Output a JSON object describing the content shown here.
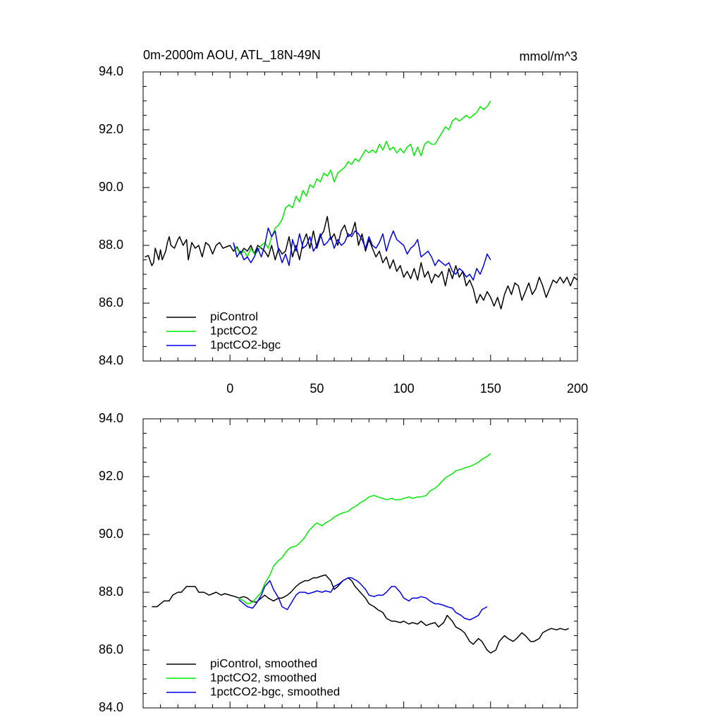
{
  "title_left": "0m-2000m AOU, ATL_18N-49N",
  "title_right": "mmol/m^3",
  "colors": {
    "piControl": "#000000",
    "1pctCO2": "#00ee00",
    "1pctCO2-bgc": "#0000ee"
  },
  "chart_data": [
    {
      "type": "line",
      "panel": "top",
      "title": "0m-2000m AOU, ATL_18N-49N",
      "units": "mmol/m^3",
      "xlim": [
        -50,
        200
      ],
      "ylim": [
        84,
        94
      ],
      "x_ticks": [
        0,
        50,
        100,
        150,
        200
      ],
      "x_tick_labels": [
        "0",
        "50",
        "100",
        "150",
        "200"
      ],
      "y_ticks": [
        84,
        86,
        88,
        90,
        92,
        94
      ],
      "y_tick_labels": [
        "84.0",
        "86.0",
        "88.0",
        "90.0",
        "92.0",
        "94.0"
      ],
      "legend_position": "bottom-left",
      "series": [
        {
          "name": "piControl",
          "color": "#000000",
          "x": [
            -49,
            -47,
            -45,
            -44,
            -43,
            -41,
            -40,
            -39,
            -37,
            -36,
            -35,
            -34,
            -32,
            -30,
            -29,
            -27,
            -25,
            -24,
            -22,
            -20,
            -18,
            -16,
            -14,
            -13,
            -12,
            -10,
            -8,
            -6,
            -4,
            -2,
            0,
            2,
            4,
            6,
            8,
            10,
            12,
            14,
            16,
            18,
            20,
            22,
            24,
            26,
            28,
            30,
            32,
            34,
            36,
            38,
            40,
            42,
            44,
            46,
            48,
            50,
            52,
            54,
            56,
            58,
            60,
            62,
            64,
            66,
            68,
            70,
            72,
            74,
            76,
            78,
            80,
            82,
            84,
            86,
            88,
            90,
            92,
            94,
            96,
            98,
            100,
            102,
            104,
            106,
            108,
            110,
            112,
            114,
            116,
            118,
            120,
            122,
            124,
            126,
            128,
            130,
            132,
            134,
            136,
            138,
            140,
            142,
            144,
            146,
            148,
            150,
            152,
            154,
            156,
            158,
            160,
            162,
            164,
            166,
            168,
            170,
            172,
            174,
            176,
            178,
            180,
            182,
            184,
            186,
            188,
            190,
            192,
            194,
            196,
            198,
            200
          ],
          "y": [
            87.6,
            87.65,
            87.3,
            87.4,
            87.9,
            87.5,
            87.85,
            87.5,
            87.8,
            88.1,
            88.3,
            88.0,
            87.9,
            88.2,
            88.3,
            88.0,
            88.2,
            87.5,
            88.1,
            87.9,
            88.0,
            87.6,
            88.1,
            88.05,
            88.0,
            87.7,
            88.0,
            88.1,
            87.9,
            87.95,
            88.0,
            87.8,
            87.95,
            87.7,
            87.9,
            87.8,
            88.0,
            87.7,
            88.0,
            87.9,
            87.8,
            87.6,
            88.0,
            87.5,
            87.9,
            87.7,
            87.8,
            88.3,
            87.6,
            88.0,
            87.5,
            88.1,
            88.4,
            87.9,
            88.5,
            87.9,
            88.3,
            88.5,
            89.0,
            88.2,
            88.4,
            88.0,
            88.5,
            88.7,
            88.3,
            88.4,
            88.8,
            88.0,
            88.4,
            87.8,
            88.2,
            87.9,
            87.6,
            87.8,
            87.4,
            87.6,
            87.2,
            87.5,
            87.1,
            87.3,
            86.9,
            87.1,
            86.85,
            87.2,
            86.8,
            87.4,
            86.9,
            87.1,
            86.7,
            87.0,
            86.9,
            87.1,
            86.6,
            87.2,
            86.85,
            87.3,
            86.9,
            87.1,
            86.6,
            86.8,
            86.5,
            86.0,
            86.3,
            86.1,
            86.4,
            86.2,
            85.9,
            86.2,
            85.8,
            86.3,
            86.6,
            86.3,
            86.7,
            86.6,
            86.1,
            86.4,
            86.7,
            86.3,
            86.5,
            86.9,
            86.6,
            86.2,
            86.5,
            86.8,
            86.7,
            86.9,
            86.7,
            86.9,
            86.6,
            86.9,
            86.8
          ]
        },
        {
          "name": "1pctCO2",
          "color": "#00ee00",
          "x": [
            2,
            4,
            6,
            8,
            10,
            12,
            14,
            16,
            18,
            20,
            22,
            24,
            26,
            28,
            30,
            32,
            34,
            36,
            38,
            40,
            42,
            44,
            46,
            48,
            50,
            52,
            54,
            56,
            58,
            60,
            62,
            64,
            66,
            68,
            70,
            72,
            74,
            76,
            78,
            80,
            82,
            84,
            86,
            88,
            90,
            92,
            94,
            96,
            98,
            100,
            102,
            104,
            106,
            108,
            110,
            112,
            114,
            116,
            118,
            120,
            122,
            124,
            126,
            128,
            130,
            132,
            134,
            136,
            138,
            140,
            142,
            144,
            146,
            148,
            150
          ],
          "y": [
            88.0,
            87.9,
            87.7,
            87.8,
            87.6,
            87.9,
            87.7,
            87.8,
            88.0,
            88.1,
            87.9,
            88.3,
            88.6,
            88.7,
            88.9,
            89.3,
            89.4,
            89.3,
            89.7,
            89.5,
            89.9,
            89.7,
            90.1,
            90.0,
            90.3,
            90.2,
            90.5,
            90.4,
            90.6,
            90.2,
            90.5,
            90.6,
            90.7,
            90.9,
            90.8,
            91.0,
            90.9,
            91.1,
            91.3,
            91.2,
            91.3,
            91.2,
            91.5,
            91.3,
            91.6,
            91.3,
            91.4,
            91.2,
            91.35,
            91.2,
            91.4,
            91.5,
            91.1,
            91.4,
            91.1,
            91.5,
            91.6,
            91.5,
            91.5,
            91.7,
            91.9,
            92.1,
            92.0,
            92.3,
            92.4,
            92.3,
            92.4,
            92.5,
            92.4,
            92.5,
            92.6,
            92.8,
            92.7,
            92.8,
            93.0
          ]
        },
        {
          "name": "1pctCO2-bgc",
          "color": "#0000ee",
          "x": [
            2,
            4,
            6,
            8,
            10,
            12,
            14,
            16,
            18,
            20,
            22,
            24,
            26,
            28,
            30,
            32,
            34,
            36,
            38,
            40,
            42,
            44,
            46,
            48,
            50,
            52,
            54,
            56,
            58,
            60,
            62,
            64,
            66,
            68,
            70,
            72,
            74,
            76,
            78,
            80,
            82,
            84,
            86,
            88,
            90,
            92,
            94,
            96,
            98,
            100,
            102,
            104,
            106,
            108,
            110,
            112,
            114,
            116,
            118,
            120,
            122,
            124,
            126,
            128,
            130,
            132,
            134,
            136,
            138,
            140,
            142,
            144,
            146,
            148,
            150
          ],
          "y": [
            88.1,
            87.6,
            87.8,
            87.5,
            87.6,
            87.4,
            87.6,
            87.9,
            87.6,
            88.0,
            88.6,
            88.3,
            88.5,
            87.8,
            87.4,
            87.7,
            87.3,
            88.2,
            87.8,
            88.4,
            87.9,
            88.0,
            88.3,
            87.8,
            88.0,
            88.4,
            88.0,
            88.1,
            88.3,
            87.9,
            88.2,
            88.0,
            88.1,
            88.4,
            88.3,
            88.5,
            88.4,
            88.2,
            87.9,
            88.3,
            88.0,
            87.9,
            88.1,
            88.4,
            87.8,
            88.2,
            88.5,
            88.2,
            88.1,
            88.0,
            87.7,
            87.9,
            88.0,
            88.2,
            87.6,
            87.7,
            87.8,
            87.6,
            87.3,
            87.5,
            87.4,
            87.3,
            87.4,
            87.1,
            87.0,
            87.2,
            87.1,
            86.9,
            87.0,
            86.8,
            87.2,
            87.0,
            87.3,
            87.7,
            87.5
          ]
        }
      ]
    },
    {
      "type": "line",
      "panel": "bottom",
      "xlim": [
        -50,
        200
      ],
      "ylim": [
        84,
        94
      ],
      "y_ticks": [
        84,
        86,
        88,
        90,
        92,
        94
      ],
      "y_tick_labels": [
        "84.0",
        "86.0",
        "88.0",
        "90.0",
        "92.0",
        "94.0"
      ],
      "legend_position": "bottom-left",
      "series": [
        {
          "name": "piControl, smoothed",
          "color": "#000000",
          "x": [
            -45,
            -42,
            -40,
            -38,
            -35,
            -33,
            -30,
            -28,
            -25,
            -22,
            -20,
            -18,
            -15,
            -12,
            -10,
            -8,
            -5,
            -3,
            0,
            3,
            5,
            8,
            10,
            12,
            15,
            18,
            20,
            22,
            25,
            28,
            30,
            33,
            35,
            38,
            40,
            43,
            45,
            48,
            50,
            52,
            55,
            58,
            60,
            62,
            65,
            68,
            70,
            72,
            75,
            78,
            80,
            83,
            85,
            88,
            90,
            93,
            95,
            98,
            100,
            103,
            105,
            108,
            110,
            113,
            115,
            118,
            120,
            123,
            125,
            128,
            130,
            133,
            135,
            138,
            140,
            143,
            145,
            148,
            150,
            153,
            155,
            158,
            160,
            163,
            165,
            168,
            170,
            173,
            175,
            178,
            180,
            183,
            185,
            188,
            190,
            193,
            195
          ],
          "y": [
            87.5,
            87.5,
            87.6,
            87.7,
            87.7,
            87.9,
            88.0,
            88.0,
            88.2,
            88.2,
            88.2,
            88.0,
            88.0,
            87.9,
            87.95,
            88.0,
            87.9,
            87.95,
            87.9,
            87.85,
            87.8,
            87.85,
            87.8,
            87.7,
            87.65,
            87.8,
            87.9,
            87.8,
            87.7,
            87.8,
            87.8,
            87.9,
            88.0,
            88.2,
            88.3,
            88.4,
            88.4,
            88.5,
            88.5,
            88.55,
            88.6,
            88.4,
            88.1,
            88.2,
            88.4,
            88.5,
            88.4,
            88.2,
            88.0,
            87.8,
            87.6,
            87.5,
            87.4,
            87.3,
            87.1,
            87.0,
            87.0,
            86.95,
            87.0,
            86.9,
            86.95,
            86.9,
            87.0,
            86.85,
            86.9,
            86.95,
            86.8,
            86.95,
            87.2,
            87.0,
            86.8,
            86.7,
            86.6,
            86.3,
            86.2,
            86.4,
            86.3,
            86.0,
            85.9,
            86.0,
            86.3,
            86.5,
            86.4,
            86.3,
            86.4,
            86.6,
            86.5,
            86.3,
            86.3,
            86.4,
            86.6,
            86.7,
            86.75,
            86.7,
            86.75,
            86.7,
            86.75
          ]
        },
        {
          "name": "1pctCO2, smoothed",
          "color": "#00ee00",
          "x": [
            5,
            8,
            10,
            13,
            15,
            18,
            20,
            23,
            25,
            28,
            30,
            33,
            35,
            38,
            40,
            43,
            45,
            48,
            50,
            53,
            55,
            58,
            60,
            63,
            65,
            68,
            70,
            73,
            75,
            78,
            80,
            83,
            85,
            88,
            90,
            93,
            95,
            98,
            100,
            103,
            105,
            108,
            110,
            113,
            115,
            118,
            120,
            123,
            125,
            128,
            130,
            133,
            135,
            138,
            140,
            143,
            145,
            148,
            150
          ],
          "y": [
            87.8,
            87.7,
            87.6,
            87.65,
            87.8,
            88.0,
            88.3,
            88.6,
            88.9,
            89.1,
            89.2,
            89.45,
            89.55,
            89.6,
            89.7,
            89.9,
            90.1,
            90.3,
            90.4,
            90.3,
            90.4,
            90.5,
            90.6,
            90.7,
            90.75,
            90.8,
            90.9,
            91.0,
            91.1,
            91.2,
            91.3,
            91.35,
            91.3,
            91.25,
            91.2,
            91.25,
            91.2,
            91.2,
            91.25,
            91.3,
            91.25,
            91.3,
            91.3,
            91.35,
            91.5,
            91.6,
            91.7,
            91.9,
            92.0,
            92.1,
            92.2,
            92.25,
            92.3,
            92.35,
            92.4,
            92.5,
            92.6,
            92.7,
            92.8
          ]
        },
        {
          "name": "1pctCO2-bgc, smoothed",
          "color": "#0000ee",
          "x": [
            5,
            8,
            10,
            13,
            15,
            18,
            20,
            23,
            25,
            28,
            30,
            33,
            35,
            38,
            40,
            43,
            45,
            48,
            50,
            53,
            55,
            58,
            60,
            63,
            65,
            68,
            70,
            73,
            75,
            78,
            80,
            83,
            85,
            88,
            90,
            93,
            95,
            98,
            100,
            103,
            105,
            108,
            110,
            113,
            115,
            118,
            120,
            123,
            125,
            128,
            130,
            133,
            135,
            138,
            140,
            143,
            145,
            148
          ],
          "y": [
            87.75,
            87.6,
            87.5,
            87.45,
            87.6,
            87.9,
            88.2,
            88.4,
            88.1,
            87.8,
            87.5,
            87.4,
            87.6,
            87.9,
            88.0,
            88.0,
            87.95,
            88.0,
            88.05,
            88.0,
            88.05,
            88.0,
            88.2,
            88.3,
            88.4,
            88.5,
            88.5,
            88.4,
            88.3,
            88.1,
            87.9,
            87.85,
            87.9,
            87.9,
            88.0,
            88.2,
            88.2,
            88.0,
            87.8,
            87.7,
            87.8,
            87.8,
            87.85,
            87.8,
            87.7,
            87.6,
            87.6,
            87.55,
            87.5,
            87.45,
            87.3,
            87.2,
            87.1,
            87.05,
            87.1,
            87.2,
            87.4,
            87.5
          ]
        }
      ]
    }
  ]
}
